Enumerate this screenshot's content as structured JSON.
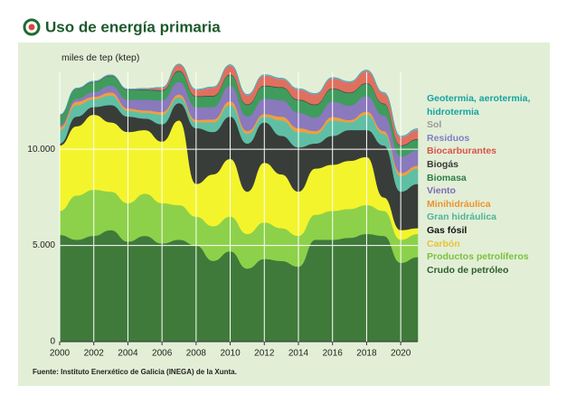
{
  "chart_data": {
    "type": "stacked_area",
    "title": "Uso de energía primaria",
    "y_axis_label": "miles de tep (ktep)",
    "source": "Fuente: Instituto Enerxético de Galicia (INEGA) de la Xunta.",
    "x": [
      2000,
      2001,
      2002,
      2003,
      2004,
      2005,
      2006,
      2007,
      2008,
      2009,
      2010,
      2011,
      2012,
      2013,
      2014,
      2015,
      2016,
      2017,
      2018,
      2019,
      2020,
      2021
    ],
    "xlim": [
      2000,
      2021
    ],
    "xticks": [
      2000,
      2002,
      2004,
      2006,
      2008,
      2010,
      2012,
      2014,
      2016,
      2018,
      2020
    ],
    "ylim": [
      0,
      14000
    ],
    "yticks": [
      0,
      {
        "value": 5000,
        "label": "5.000"
      },
      {
        "value": 10000,
        "label": "10.000"
      }
    ],
    "grid": true,
    "series": [
      {
        "name": "Crudo de petróleo",
        "color": "#3f7a3b",
        "label_color": "#2f5e2d",
        "values": [
          5550,
          5300,
          5500,
          5800,
          5200,
          5500,
          5100,
          5300,
          5000,
          4200,
          4700,
          3800,
          4300,
          4200,
          3900,
          5300,
          5300,
          5400,
          5600,
          5500,
          4100,
          4400
        ]
      },
      {
        "name": "Productos petrolíferos",
        "color": "#8dd14a",
        "label_color": "#7cc03e",
        "values": [
          1250,
          2300,
          2400,
          2000,
          2000,
          2200,
          2100,
          1800,
          1500,
          1800,
          1800,
          1800,
          1900,
          1700,
          1600,
          1300,
          1500,
          1500,
          1500,
          1300,
          1200,
          1200
        ]
      },
      {
        "name": "Carbón",
        "color": "#f4f42c",
        "label_color": "#e8c23a",
        "values": [
          3400,
          3600,
          3900,
          3600,
          3700,
          3300,
          3200,
          4400,
          1700,
          2700,
          3000,
          2200,
          3100,
          2800,
          2300,
          2400,
          2400,
          2500,
          2500,
          700,
          500,
          300
        ]
      },
      {
        "name": "Gas fósil",
        "color": "#383d39",
        "label_color": "#111111",
        "values": [
          100,
          500,
          400,
          900,
          800,
          600,
          900,
          900,
          2900,
          2200,
          2200,
          2500,
          2100,
          2000,
          2300,
          1300,
          1500,
          1600,
          1400,
          2700,
          2000,
          2300
        ]
      },
      {
        "name": "Gran hidráulica",
        "color": "#5fbfa5",
        "label_color": "#4fb39a",
        "values": [
          700,
          600,
          400,
          500,
          300,
          300,
          500,
          300,
          300,
          500,
          600,
          500,
          300,
          800,
          800,
          500,
          800,
          400,
          800,
          600,
          800,
          800
        ]
      },
      {
        "name": "Minihidráulica",
        "color": "#ef9f3f",
        "label_color": "#ea9430",
        "values": [
          150,
          180,
          130,
          160,
          120,
          120,
          140,
          150,
          130,
          150,
          200,
          150,
          130,
          200,
          200,
          150,
          180,
          120,
          160,
          150,
          170,
          150
        ]
      },
      {
        "name": "Viento",
        "color": "#8a79bd",
        "label_color": "#7d6bb5",
        "values": [
          100,
          150,
          250,
          350,
          450,
          550,
          600,
          650,
          650,
          650,
          800,
          750,
          800,
          850,
          800,
          700,
          800,
          750,
          800,
          800,
          850,
          800
        ]
      },
      {
        "name": "Biomasa",
        "color": "#3f9c5d",
        "label_color": "#2d7d49",
        "values": [
          500,
          500,
          500,
          500,
          500,
          500,
          500,
          550,
          550,
          550,
          550,
          600,
          650,
          650,
          650,
          650,
          650,
          650,
          650,
          600,
          550,
          550
        ]
      },
      {
        "name": "Biogás",
        "color": "#4a4a4a",
        "label_color": "#3a3a3a",
        "values": [
          20,
          20,
          30,
          30,
          30,
          40,
          40,
          40,
          40,
          40,
          40,
          40,
          40,
          40,
          40,
          40,
          40,
          40,
          40,
          40,
          40,
          40
        ]
      },
      {
        "name": "Biocarburantes",
        "color": "#e0705e",
        "label_color": "#d9534a",
        "values": [
          0,
          0,
          0,
          0,
          0,
          20,
          100,
          300,
          300,
          400,
          450,
          450,
          500,
          400,
          500,
          500,
          500,
          500,
          600,
          500,
          400,
          450
        ]
      },
      {
        "name": "Residuos",
        "color": "#8f8fd0",
        "label_color": "#7f7fc8",
        "values": [
          30,
          30,
          30,
          30,
          30,
          30,
          30,
          30,
          30,
          30,
          30,
          30,
          30,
          30,
          30,
          30,
          30,
          30,
          30,
          30,
          30,
          30
        ]
      },
      {
        "name": "Sol",
        "color": "#a8a8a8",
        "label_color": "#9a9a9a",
        "values": [
          0,
          0,
          0,
          0,
          0,
          0,
          5,
          10,
          15,
          20,
          25,
          25,
          25,
          25,
          25,
          25,
          25,
          25,
          30,
          30,
          35,
          40
        ]
      },
      {
        "name": "Geotermia, aerotermia, hidrotermia",
        "color": "#1fb0b0",
        "label_color": "#17a2a2",
        "values": [
          0,
          0,
          0,
          0,
          0,
          0,
          0,
          0,
          0,
          5,
          5,
          5,
          5,
          5,
          5,
          5,
          5,
          5,
          10,
          10,
          10,
          10
        ]
      }
    ]
  }
}
